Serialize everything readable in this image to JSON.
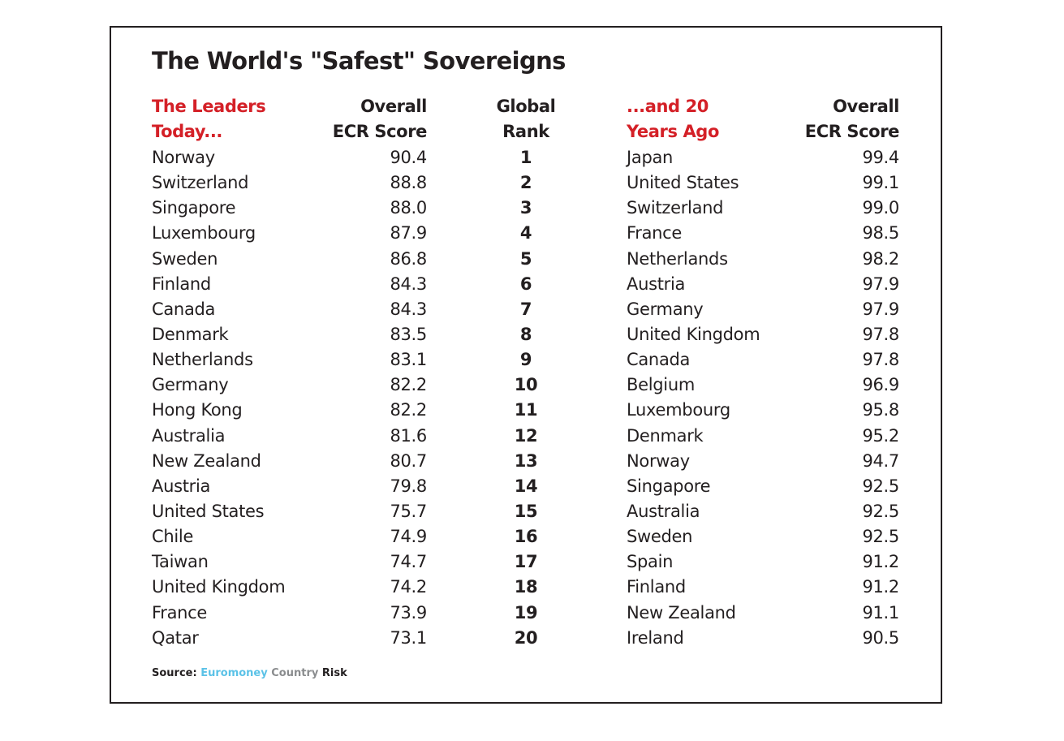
{
  "title": "The World's \"Safest\" Sovereigns",
  "headers": {
    "leaders": [
      "The Leaders",
      "Today..."
    ],
    "score": [
      "Overall",
      "ECR Score"
    ],
    "rank": [
      "Global",
      "Rank"
    ],
    "past": [
      "...and 20",
      "Years Ago"
    ],
    "past_score": [
      "Overall",
      "ECR Score"
    ]
  },
  "colors": {
    "accent": "#d42027",
    "text": "#231f20",
    "euromoney": "#5bc2e7",
    "country": "#8a8c8e"
  },
  "source": {
    "label": "Source:",
    "brand1": "Euromoney",
    "brand2": "Country",
    "brand3": "Risk"
  },
  "chart_data": {
    "type": "table",
    "title": "The World's \"Safest\" Sovereigns",
    "columns": [
      "The Leaders Today...",
      "Overall ECR Score",
      "Global Rank",
      "...and 20 Years Ago",
      "Overall ECR Score"
    ],
    "rows": [
      [
        "Norway",
        "90.4",
        "1",
        "Japan",
        "99.4"
      ],
      [
        "Switzerland",
        "88.8",
        "2",
        "United States",
        "99.1"
      ],
      [
        "Singapore",
        "88.0",
        "3",
        "Switzerland",
        "99.0"
      ],
      [
        "Luxembourg",
        "87.9",
        "4",
        "France",
        "98.5"
      ],
      [
        "Sweden",
        "86.8",
        "5",
        "Netherlands",
        "98.2"
      ],
      [
        "Finland",
        "84.3",
        "6",
        "Austria",
        "97.9"
      ],
      [
        "Canada",
        "84.3",
        "7",
        "Germany",
        "97.9"
      ],
      [
        "Denmark",
        "83.5",
        "8",
        "United Kingdom",
        "97.8"
      ],
      [
        "Netherlands",
        "83.1",
        "9",
        "Canada",
        "97.8"
      ],
      [
        "Germany",
        "82.2",
        "10",
        "Belgium",
        "96.9"
      ],
      [
        "Hong Kong",
        "82.2",
        "11",
        "Luxembourg",
        "95.8"
      ],
      [
        "Australia",
        "81.6",
        "12",
        "Denmark",
        "95.2"
      ],
      [
        "New Zealand",
        "80.7",
        "13",
        "Norway",
        "94.7"
      ],
      [
        "Austria",
        "79.8",
        "14",
        "Singapore",
        "92.5"
      ],
      [
        "United States",
        "75.7",
        "15",
        "Australia",
        "92.5"
      ],
      [
        "Chile",
        "74.9",
        "16",
        "Sweden",
        "92.5"
      ],
      [
        "Taiwan",
        "74.7",
        "17",
        "Spain",
        "91.2"
      ],
      [
        "United Kingdom",
        "74.2",
        "18",
        "Finland",
        "91.2"
      ],
      [
        "France",
        "73.9",
        "19",
        "New Zealand",
        "91.1"
      ],
      [
        "Qatar",
        "73.1",
        "20",
        "Ireland",
        "90.5"
      ]
    ]
  }
}
